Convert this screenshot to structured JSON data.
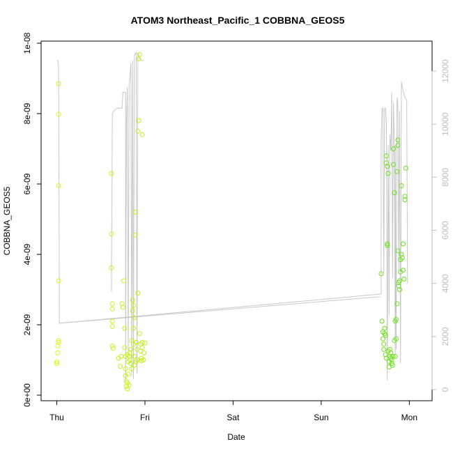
{
  "chart_data": {
    "type": "scatter",
    "title": "ATOM3 Northeast_Pacific_1 COBBNA_GEOS5",
    "xlabel": "Date",
    "ylabel": "COBBNA_GEOS5",
    "x_ticks": [
      "Thu",
      "Fri",
      "Sat",
      "Sun",
      "Mon"
    ],
    "xlim": [
      -0.02,
      4.1
    ],
    "y_ticks": [
      "0e+00",
      "2e-09",
      "4e-09",
      "6e-09",
      "8e-09",
      "1e-08"
    ],
    "ylim": [
      0,
      1e-08
    ],
    "y2_ticks": [
      "0",
      "2000",
      "4000",
      "6000",
      "8000",
      "10000",
      "12000"
    ],
    "y2lim": [
      -210,
      13300
    ],
    "grid": false,
    "series": [
      {
        "kind": "points",
        "x_unit": "days since Thursday 00:00",
        "y_unit": "mixing ratio",
        "points": [
          [
            0.0,
            9e-10
          ],
          [
            0.0,
            9.5e-10
          ],
          [
            0.01,
            1.2e-09
          ],
          [
            0.01,
            1.4e-09
          ],
          [
            0.02,
            1.5e-09
          ],
          [
            0.02,
            1.55e-09
          ],
          [
            0.02,
            3.25e-09
          ],
          [
            0.02,
            5.95e-09
          ],
          [
            0.02,
            7.98e-09
          ],
          [
            0.02,
            8.85e-09
          ],
          [
            0.62,
            6.3e-09
          ],
          [
            0.62,
            4.58e-09
          ],
          [
            0.62,
            3.62e-09
          ],
          [
            0.63,
            2.6e-09
          ],
          [
            0.63,
            2.45e-09
          ],
          [
            0.63,
            2.1e-09
          ],
          [
            0.63,
            1.95e-09
          ],
          [
            0.63,
            1.4e-09
          ],
          [
            0.64,
            1.33e-09
          ],
          [
            0.7,
            1.05e-09
          ],
          [
            0.72,
            8.2e-10
          ],
          [
            0.73,
            1.1e-09
          ],
          [
            0.74,
            2.6e-09
          ],
          [
            0.75,
            2.5e-09
          ],
          [
            0.76,
            3.25e-09
          ],
          [
            0.77,
            1.9e-09
          ],
          [
            0.77,
            1.35e-09
          ],
          [
            0.78,
            1.1e-09
          ],
          [
            0.78,
            7.5e-10
          ],
          [
            0.78,
            5.5e-10
          ],
          [
            0.79,
            4e-10
          ],
          [
            0.79,
            2.5e-10
          ],
          [
            0.8,
            1.8e-10
          ],
          [
            0.8,
            3.5e-10
          ],
          [
            0.8,
            1.15e-09
          ],
          [
            0.81,
            9.5e-10
          ],
          [
            0.81,
            6e-10
          ],
          [
            0.82,
            1.1e-09
          ],
          [
            0.82,
            2.8e-10
          ],
          [
            0.83,
            1e-09
          ],
          [
            0.83,
            1.2e-09
          ],
          [
            0.84,
            1.3e-09
          ],
          [
            0.84,
            9e-10
          ],
          [
            0.85,
            7.5e-10
          ],
          [
            0.85,
            1.55e-09
          ],
          [
            0.86,
            2.4e-09
          ],
          [
            0.86,
            2.7e-09
          ],
          [
            0.87,
            2.55e-09
          ],
          [
            0.87,
            1.9e-09
          ],
          [
            0.87,
            1.45e-09
          ],
          [
            0.88,
            1.1e-09
          ],
          [
            0.88,
            8.5e-10
          ],
          [
            0.88,
            2.2e-09
          ],
          [
            0.89,
            5.2e-09
          ],
          [
            0.89,
            4.55e-09
          ],
          [
            0.9,
            1.5e-09
          ],
          [
            0.9,
            9.5e-10
          ],
          [
            0.91,
            1e-09
          ],
          [
            0.91,
            1.3e-09
          ],
          [
            0.92,
            7.5e-09
          ],
          [
            0.92,
            2.9e-09
          ],
          [
            0.93,
            7.8e-09
          ],
          [
            0.93,
            9.55e-09
          ],
          [
            0.94,
            9.68e-09
          ],
          [
            0.94,
            1.75e-09
          ],
          [
            0.95,
            1.45e-09
          ],
          [
            0.95,
            1.25e-09
          ],
          [
            0.96,
            1.05e-09
          ],
          [
            0.96,
            9.8e-10
          ],
          [
            0.97,
            1.35e-09
          ],
          [
            0.97,
            1.5e-09
          ],
          [
            0.97,
            7.4e-09
          ],
          [
            0.98,
            1e-09
          ],
          [
            0.99,
            1.2e-09
          ],
          [
            1.0,
            1.48e-09
          ],
          [
            3.68,
            3.45e-09
          ],
          [
            3.69,
            2.1e-09
          ],
          [
            3.7,
            1.8e-09
          ],
          [
            3.7,
            1.6e-09
          ],
          [
            3.71,
            1.45e-09
          ],
          [
            3.71,
            1.3e-09
          ],
          [
            3.72,
            1.75e-09
          ],
          [
            3.72,
            1.9e-09
          ],
          [
            3.73,
            1.7e-09
          ],
          [
            3.73,
            1.15e-09
          ],
          [
            3.74,
            1.05e-09
          ],
          [
            3.74,
            6.6e-09
          ],
          [
            3.74,
            6.8e-09
          ],
          [
            3.75,
            6.5e-09
          ],
          [
            3.75,
            4.3e-09
          ],
          [
            3.75,
            4.25e-09
          ],
          [
            3.76,
            6.3e-09
          ],
          [
            3.76,
            1.25e-09
          ],
          [
            3.77,
            9.5e-10
          ],
          [
            3.77,
            8e-10
          ],
          [
            3.78,
            1.1e-09
          ],
          [
            3.78,
            1.3e-09
          ],
          [
            3.79,
            1.2e-09
          ],
          [
            3.79,
            1.05e-09
          ],
          [
            3.8,
            1e-09
          ],
          [
            3.8,
            9e-10
          ],
          [
            3.81,
            1.1e-09
          ],
          [
            3.81,
            8.5e-10
          ],
          [
            3.82,
            7e-09
          ],
          [
            3.82,
            6.55e-09
          ],
          [
            3.83,
            5.75e-09
          ],
          [
            3.83,
            1.55e-09
          ],
          [
            3.84,
            1.1e-09
          ],
          [
            3.84,
            2.1e-09
          ],
          [
            3.85,
            2.15e-09
          ],
          [
            3.85,
            1.6e-09
          ],
          [
            3.86,
            2.6e-09
          ],
          [
            3.86,
            6.35e-09
          ],
          [
            3.87,
            7.25e-09
          ],
          [
            3.87,
            7.1e-09
          ],
          [
            3.87,
            4.1e-09
          ],
          [
            3.88,
            3.2e-09
          ],
          [
            3.88,
            3.1e-09
          ],
          [
            3.89,
            3e-09
          ],
          [
            3.89,
            3.25e-09
          ],
          [
            3.9,
            3.5e-09
          ],
          [
            3.9,
            3.85e-09
          ],
          [
            3.91,
            4e-09
          ],
          [
            3.91,
            5.95e-09
          ],
          [
            3.92,
            3.9e-09
          ],
          [
            3.93,
            3.55e-09
          ],
          [
            3.93,
            4.3e-09
          ],
          [
            3.94,
            3.3e-09
          ],
          [
            3.95,
            5.55e-09
          ],
          [
            3.95,
            5.65e-09
          ],
          [
            3.96,
            6.45e-09
          ]
        ]
      },
      {
        "kind": "line",
        "axis": "right",
        "x_unit": "days since Thursday 00:00",
        "y_unit": "right axis units",
        "points": [
          [
            0.0,
            12400
          ],
          [
            0.01,
            12400
          ],
          [
            0.02,
            12200
          ],
          [
            0.03,
            2500
          ],
          [
            3.68,
            3600
          ],
          [
            3.68,
            9400
          ],
          [
            3.69,
            10600
          ],
          [
            3.7,
            10600
          ],
          [
            3.71,
            4400
          ],
          [
            3.72,
            10600
          ],
          [
            3.73,
            10600
          ],
          [
            3.74,
            10000
          ],
          [
            3.75,
            350
          ],
          [
            3.76,
            9200
          ],
          [
            3.77,
            2800
          ],
          [
            3.78,
            9600
          ],
          [
            3.79,
            9000
          ],
          [
            3.8,
            11200
          ],
          [
            3.81,
            4200
          ],
          [
            3.82,
            10800
          ],
          [
            3.83,
            9300
          ],
          [
            3.84,
            1200
          ],
          [
            3.84,
            9200
          ],
          [
            3.85,
            1500
          ],
          [
            3.86,
            11000
          ],
          [
            3.87,
            10800
          ],
          [
            3.88,
            4500
          ],
          [
            3.89,
            10500
          ],
          [
            3.9,
            1000
          ],
          [
            3.91,
            11600
          ],
          [
            3.92,
            11400
          ],
          [
            3.95,
            11000
          ],
          [
            3.97,
            10900
          ],
          [
            3.98,
            4000
          ]
        ]
      },
      {
        "kind": "line",
        "axis": "right",
        "x_unit": "days since Thursday 00:00",
        "y_unit": "right axis units",
        "points": [
          [
            0.62,
            3700
          ],
          [
            0.63,
            10400
          ],
          [
            0.65,
            10500
          ],
          [
            0.68,
            10600
          ],
          [
            0.7,
            10600
          ],
          [
            0.74,
            10600
          ],
          [
            0.75,
            11200
          ],
          [
            0.78,
            11200
          ],
          [
            0.78,
            300
          ],
          [
            0.79,
            10000
          ],
          [
            0.8,
            11400
          ],
          [
            0.81,
            1300
          ],
          [
            0.82,
            11400
          ],
          [
            0.84,
            12300
          ],
          [
            0.85,
            500
          ],
          [
            0.86,
            12400
          ],
          [
            0.87,
            400
          ],
          [
            0.88,
            12600
          ],
          [
            0.9,
            12700
          ],
          [
            0.91,
            600
          ],
          [
            0.92,
            12700
          ],
          [
            0.94,
            12500
          ],
          [
            0.95,
            12400
          ],
          [
            0.96,
            12400
          ],
          [
            0.99,
            12400
          ]
        ]
      },
      {
        "kind": "line",
        "axis": "right",
        "x_unit": "days since Thursday 00:00",
        "y_unit": "right axis units",
        "points": [
          [
            0.03,
            2500
          ],
          [
            3.67,
            3500
          ]
        ]
      }
    ]
  }
}
